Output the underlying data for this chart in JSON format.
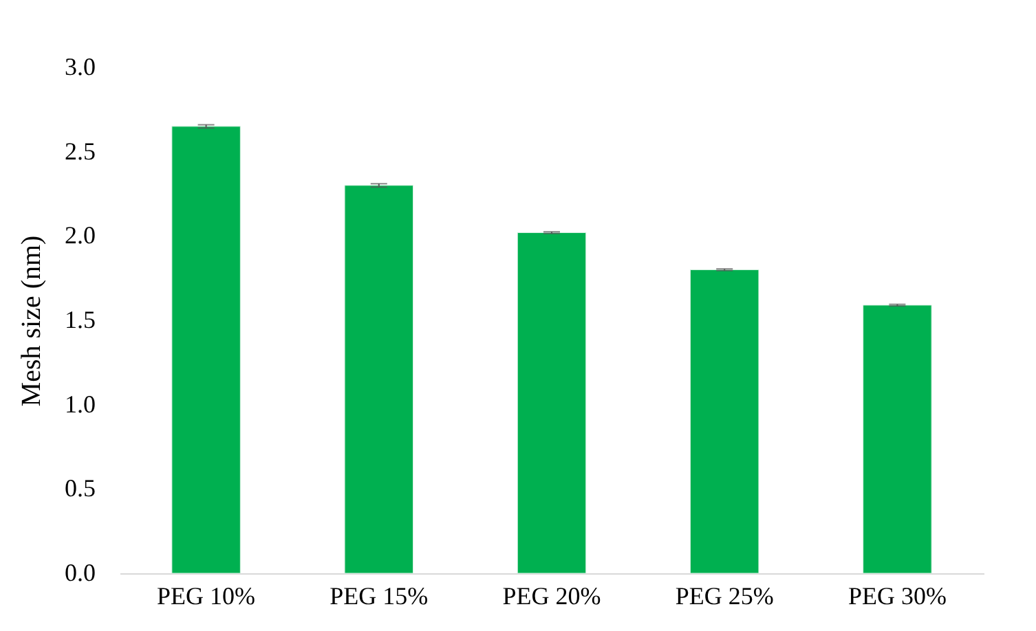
{
  "chart_data": {
    "type": "bar",
    "ylabel": "Mesh size (nm)",
    "categories": [
      "PEG 10%",
      "PEG 15%",
      "PEG 20%",
      "PEG 25%",
      "PEG 30%"
    ],
    "values": [
      2.65,
      2.3,
      2.02,
      1.8,
      1.59
    ],
    "errors": [
      0.01,
      0.01,
      0.005,
      0.005,
      0.005
    ],
    "color": "#00b050",
    "ylim": [
      0,
      3
    ],
    "yticks": [
      {
        "value": 0,
        "label": "0.0"
      },
      {
        "value": 0.5,
        "label": "0.5"
      },
      {
        "value": 1,
        "label": "1.0"
      },
      {
        "value": 1.5,
        "label": "1.5"
      },
      {
        "value": 2,
        "label": "2.0"
      },
      {
        "value": 2.5,
        "label": "2.5"
      },
      {
        "value": 3,
        "label": "3.0"
      }
    ],
    "grid": false
  }
}
